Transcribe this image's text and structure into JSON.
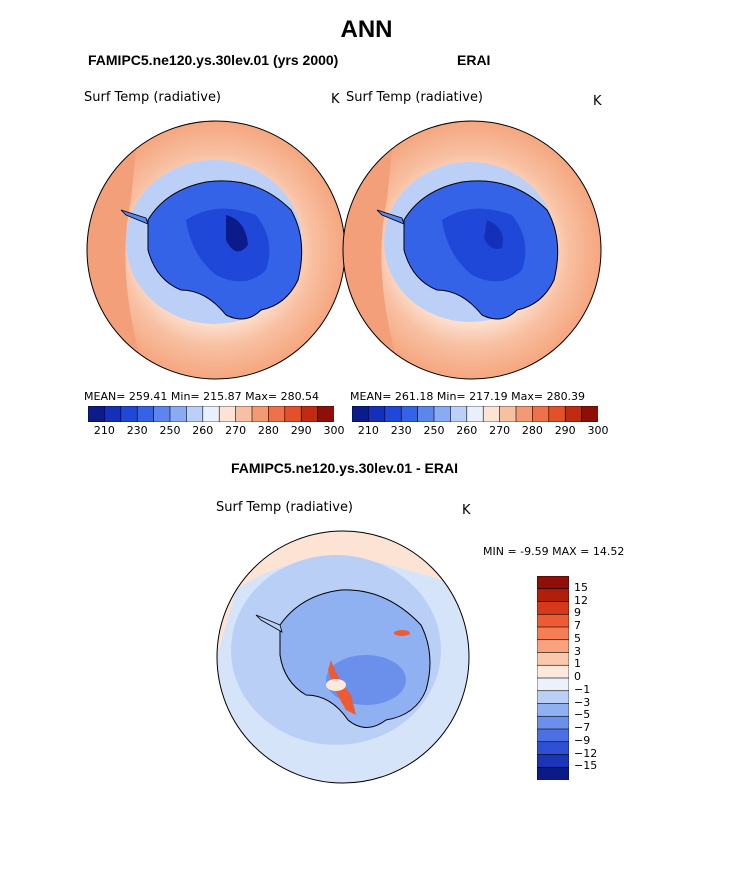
{
  "title": "ANN",
  "chart_data": [
    {
      "type": "contour-map",
      "projection": "south-polar-stereographic",
      "title": "FAMIPC5.ne120.ys.30lev.01 (yrs 2000)",
      "variable": "Surf Temp (radiative)",
      "units": "K",
      "stats": {
        "mean": 259.41,
        "min": 215.87,
        "max": 280.54
      },
      "stats_text": "MEAN= 259.41   Min= 215.87   Max= 280.54",
      "colorbar": {
        "labels": [
          "210",
          "230",
          "250",
          "260",
          "270",
          "280",
          "290",
          "300"
        ],
        "colors": [
          "#0b1b8a",
          "#1530b8",
          "#1f47d8",
          "#3563e8",
          "#5a86ee",
          "#8aaaf3",
          "#bcd0f7",
          "#e8f0fb",
          "#fde3d4",
          "#f8c0a2",
          "#f39a74",
          "#ee7249",
          "#e4502a",
          "#c22b12",
          "#8e0f08"
        ]
      }
    },
    {
      "type": "contour-map",
      "projection": "south-polar-stereographic",
      "title": "ERAI",
      "variable": "Surf Temp (radiative)",
      "units": "K",
      "stats": {
        "mean": 261.18,
        "min": 217.19,
        "max": 280.39
      },
      "stats_text": "MEAN= 261.18   Min= 217.19   Max= 280.39",
      "colorbar": {
        "labels": [
          "210",
          "230",
          "250",
          "260",
          "270",
          "280",
          "290",
          "300"
        ],
        "colors": [
          "#0b1b8a",
          "#1530b8",
          "#1f47d8",
          "#3563e8",
          "#5a86ee",
          "#8aaaf3",
          "#bcd0f7",
          "#e8f0fb",
          "#fde3d4",
          "#f8c0a2",
          "#f39a74",
          "#ee7249",
          "#e4502a",
          "#c22b12",
          "#8e0f08"
        ]
      }
    },
    {
      "type": "contour-map",
      "projection": "south-polar-stereographic",
      "title": "FAMIPC5.ne120.ys.30lev.01 - ERAI",
      "variable": "Surf Temp (radiative)",
      "units": "K",
      "stats": {
        "min": -9.59,
        "max": 14.52
      },
      "stats_text": "MIN =  -9.59 MAX =  14.52",
      "colorbar": {
        "labels": [
          "15",
          "12",
          "9",
          "7",
          "5",
          "3",
          "1",
          "0",
          "−1",
          "−3",
          "−5",
          "−7",
          "−9",
          "−12",
          "−15"
        ],
        "colors": [
          "#8e0f08",
          "#b01e0c",
          "#d6381a",
          "#ee5a34",
          "#f47e56",
          "#f8a27e",
          "#fbc7ad",
          "#fde9dc",
          "#eaf2fb",
          "#b9cff5",
          "#90b1f1",
          "#6a90ec",
          "#4a70e4",
          "#2f50d4",
          "#1a35b8",
          "#0c1a86"
        ]
      }
    }
  ]
}
